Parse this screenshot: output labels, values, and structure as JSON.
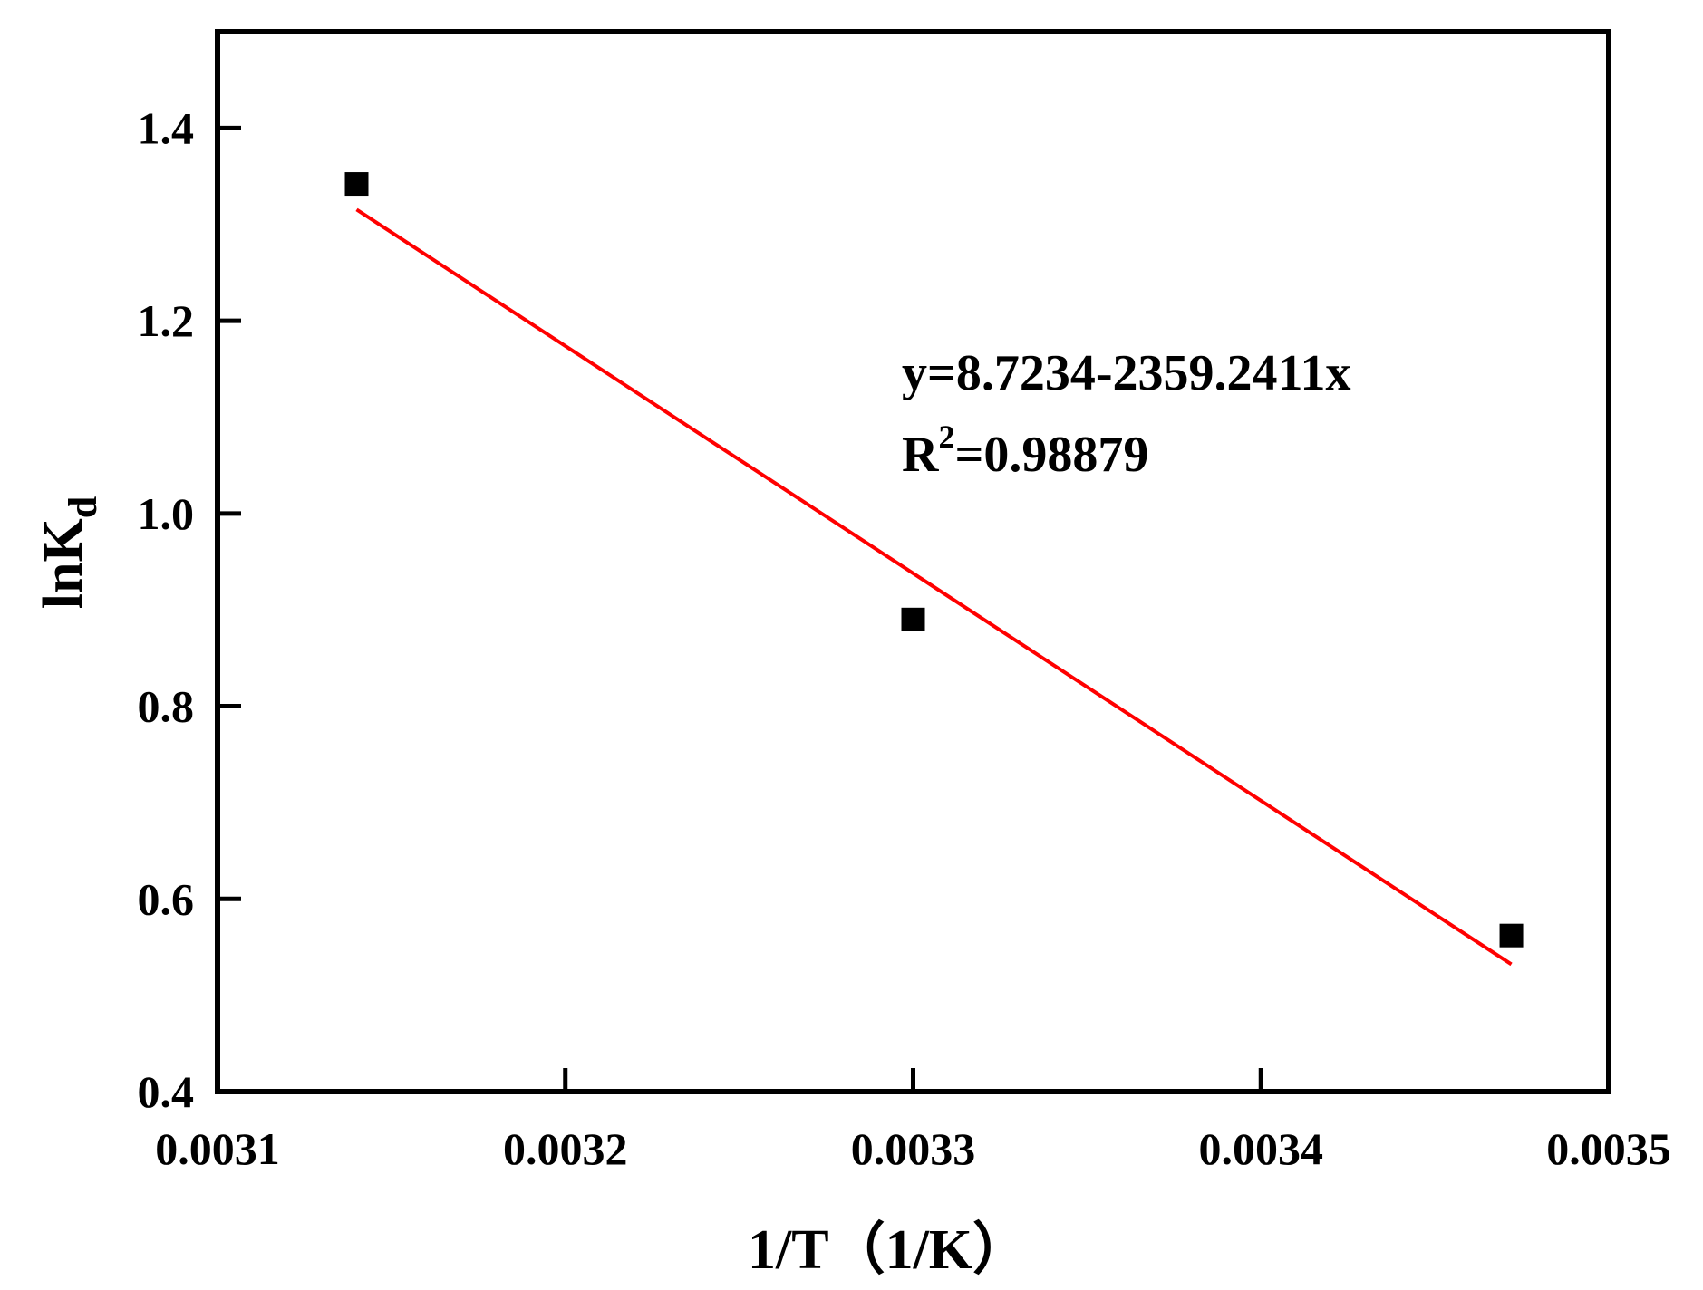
{
  "chart_data": {
    "type": "scatter",
    "title": "",
    "xlabel": "1/T（1/K）",
    "ylabel": {
      "main": "lnK",
      "sub": "d"
    },
    "xlim": [
      0.0031,
      0.0035
    ],
    "ylim": [
      0.4,
      1.5
    ],
    "x_ticks": [
      0.0031,
      0.0032,
      0.0033,
      0.0034,
      0.0035
    ],
    "x_tick_labels": [
      "0.0031",
      "0.0032",
      "0.0033",
      "0.0034",
      "0.0035"
    ],
    "y_ticks": [
      0.4,
      0.6,
      0.8,
      1.0,
      1.2,
      1.4
    ],
    "y_tick_labels": [
      "0.4",
      "0.6",
      "0.8",
      "1.0",
      "1.2",
      "1.4"
    ],
    "grid": false,
    "series": [
      {
        "type": "scatter",
        "marker": "square",
        "color": "#000000",
        "points": [
          {
            "x": 0.00314,
            "y": 1.342
          },
          {
            "x": 0.0033,
            "y": 0.89
          },
          {
            "x": 0.003472,
            "y": 0.562
          }
        ]
      },
      {
        "type": "line",
        "color": "#ff0000",
        "intercept": 8.7234,
        "slope": -2359.2411,
        "x_range": [
          0.00314,
          0.003472
        ]
      }
    ],
    "annotations": {
      "equation": "y=8.7234-2359.2411x",
      "r_squared_prefix": "R",
      "r_squared_sup": "2",
      "r_squared_value": "=0.98879"
    }
  }
}
